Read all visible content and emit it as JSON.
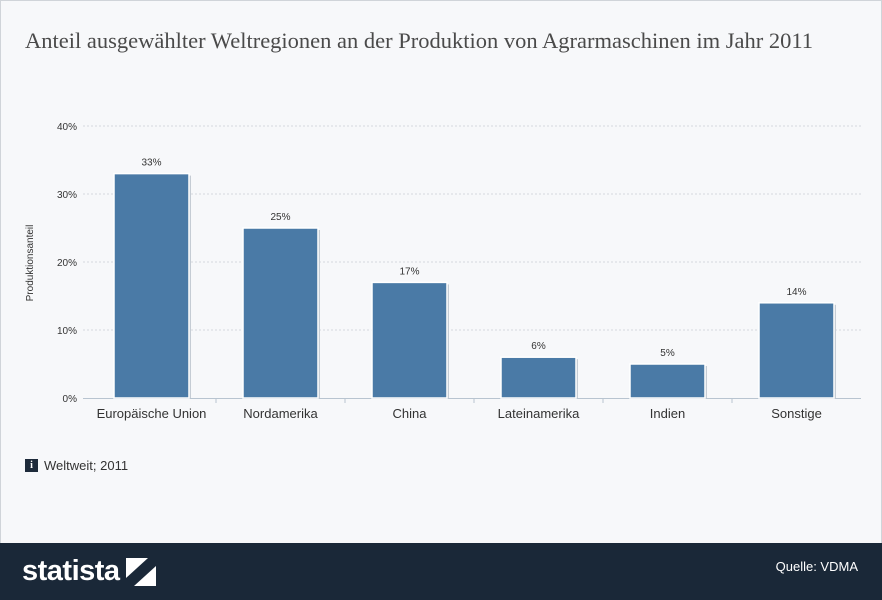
{
  "title": "Anteil ausgewählter Weltregionen an der Produktion von Agrarmaschinen im Jahr 2011",
  "info_text": "Weltweit; 2011",
  "info_icon": "info-icon",
  "footer": {
    "logo_text": "statista",
    "source": "Quelle: VDMA"
  },
  "colors": {
    "bar": "#4a7aa6",
    "footer": "#1a2838",
    "grid": "#d5d9de"
  },
  "chart_data": {
    "type": "bar",
    "categories": [
      "Europäische Union",
      "Nordamerika",
      "China",
      "Lateinamerika",
      "Indien",
      "Sonstige"
    ],
    "values": [
      33,
      25,
      17,
      6,
      5,
      14
    ],
    "value_labels": [
      "33%",
      "25%",
      "17%",
      "6%",
      "5%",
      "14%"
    ],
    "ylabel": "Produktionsanteil",
    "xlabel": "",
    "ylim": [
      0,
      40
    ],
    "yticks": [
      0,
      10,
      20,
      30,
      40
    ],
    "ytick_labels": [
      "0%",
      "10%",
      "20%",
      "30%",
      "40%"
    ],
    "grid": true
  }
}
